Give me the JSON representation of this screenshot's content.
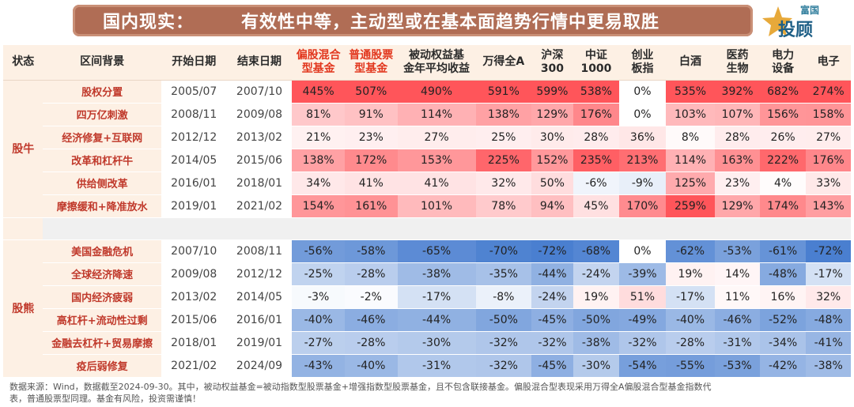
{
  "header": {
    "title_part1": "国内现实：",
    "title_part2": "有效性中等，主动型或在基本面趋势行情中更易取胜"
  },
  "logo": {
    "small": "富国",
    "big": "投顾"
  },
  "table": {
    "columns": [
      {
        "lines": [
          "状态"
        ],
        "accent": false
      },
      {
        "lines": [
          "区间背景"
        ],
        "accent": false
      },
      {
        "lines": [
          "开始日期"
        ],
        "accent": false
      },
      {
        "lines": [
          "结束日期"
        ],
        "accent": false
      },
      {
        "lines": [
          "偏股混合",
          "型基金"
        ],
        "accent": true
      },
      {
        "lines": [
          "普通股票",
          "型基金"
        ],
        "accent": true
      },
      {
        "lines": [
          "被动权益基",
          "金年平均收益"
        ],
        "accent": false
      },
      {
        "lines": [
          "万得全A"
        ],
        "accent": false
      },
      {
        "lines": [
          "沪深",
          "300"
        ],
        "accent": false
      },
      {
        "lines": [
          "中证",
          "1000"
        ],
        "accent": false
      },
      {
        "lines": [
          "创业",
          "板指"
        ],
        "accent": false
      },
      {
        "lines": [
          "白酒"
        ],
        "accent": false
      },
      {
        "lines": [
          "医药",
          "生物"
        ],
        "accent": false
      },
      {
        "lines": [
          "电力",
          "设备"
        ],
        "accent": false
      },
      {
        "lines": [
          "电子"
        ],
        "accent": false
      }
    ],
    "groups": [
      {
        "state": "股牛",
        "rows": [
          {
            "bg": "股权分置",
            "start": "2005/07",
            "end": "2007/10",
            "values": [
              "445%",
              "507%",
              "490%",
              "591%",
              "599%",
              "538%",
              "0%",
              "535%",
              "392%",
              "682%",
              "274%"
            ]
          },
          {
            "bg": "四万亿刺激",
            "start": "2008/11",
            "end": "2009/08",
            "values": [
              "81%",
              "91%",
              "114%",
              "138%",
              "129%",
              "176%",
              "0%",
              "103%",
              "107%",
              "156%",
              "158%"
            ]
          },
          {
            "bg": "经济修复+互联网",
            "start": "2012/12",
            "end": "2013/02",
            "values": [
              "21%",
              "23%",
              "27%",
              "25%",
              "30%",
              "28%",
              "36%",
              "8%",
              "28%",
              "26%",
              "27%"
            ]
          },
          {
            "bg": "改革和杠杆牛",
            "start": "2014/05",
            "end": "2015/06",
            "values": [
              "138%",
              "172%",
              "153%",
              "225%",
              "152%",
              "235%",
              "213%",
              "114%",
              "163%",
              "222%",
              "176%"
            ]
          },
          {
            "bg": "供给侧改革",
            "start": "2016/01",
            "end": "2018/01",
            "values": [
              "34%",
              "41%",
              "41%",
              "32%",
              "50%",
              "-6%",
              "-9%",
              "125%",
              "23%",
              "4%",
              "33%"
            ]
          },
          {
            "bg": "摩擦缓和+降准放水",
            "start": "2019/01",
            "end": "2021/02",
            "values": [
              "154%",
              "161%",
              "101%",
              "78%",
              "94%",
              "45%",
              "170%",
              "259%",
              "129%",
              "174%",
              "143%"
            ]
          }
        ]
      },
      {
        "state": "股熊",
        "rows": [
          {
            "bg": "美国金融危机",
            "start": "2007/10",
            "end": "2008/11",
            "values": [
              "-56%",
              "-58%",
              "-65%",
              "-70%",
              "-72%",
              "-68%",
              "0%",
              "-62%",
              "-53%",
              "-61%",
              "-72%"
            ]
          },
          {
            "bg": "全球经济降速",
            "start": "2009/08",
            "end": "2012/12",
            "values": [
              "-25%",
              "-28%",
              "-38%",
              "-35%",
              "-44%",
              "-24%",
              "-39%",
              "19%",
              "14%",
              "-48%",
              "-17%"
            ]
          },
          {
            "bg": "国内经济疲弱",
            "start": "2013/02",
            "end": "2014/05",
            "values": [
              "-3%",
              "-2%",
              "-17%",
              "-8%",
              "-24%",
              "19%",
              "51%",
              "-17%",
              "11%",
              "16%",
              "32%"
            ]
          },
          {
            "bg": "高杠杆+流动性过剩",
            "start": "2015/06",
            "end": "2016/01",
            "values": [
              "-40%",
              "-46%",
              "-44%",
              "-50%",
              "-45%",
              "-50%",
              "-49%",
              "-40%",
              "-46%",
              "-52%",
              "-48%"
            ]
          },
          {
            "bg": "金融去杠杆+贸易摩擦",
            "start": "2018/01",
            "end": "2019/01",
            "values": [
              "-27%",
              "-28%",
              "-30%",
              "-32%",
              "-32%",
              "-38%",
              "-32%",
              "-28%",
              "-31%",
              "-34%",
              "-41%"
            ]
          },
          {
            "bg": "疫后弱修复",
            "start": "2021/02",
            "end": "2024/09",
            "values": [
              "-43%",
              "-40%",
              "-31%",
              "-32%",
              "-45%",
              "-30%",
              "-54%",
              "-55%",
              "-53%",
              "-42%",
              "-38%"
            ]
          }
        ]
      }
    ]
  },
  "colors": {
    "red_strong": "#f2555a",
    "blue_strong": "#4a7fd0",
    "header_bg": "#fdf0e4",
    "accent_text": "#e2371e"
  },
  "note": {
    "line1": "数据来源：Wind，数据截至2024-09-30。其中，被动权益基金=被动指数型股票基金+增强指数型股票基金，且不包含联接基金。偏股混合型表现采用万得全A偏股混合型基金指数代",
    "line2": "表，普通股票型同理。基金有风险，投资需谨慎！"
  }
}
